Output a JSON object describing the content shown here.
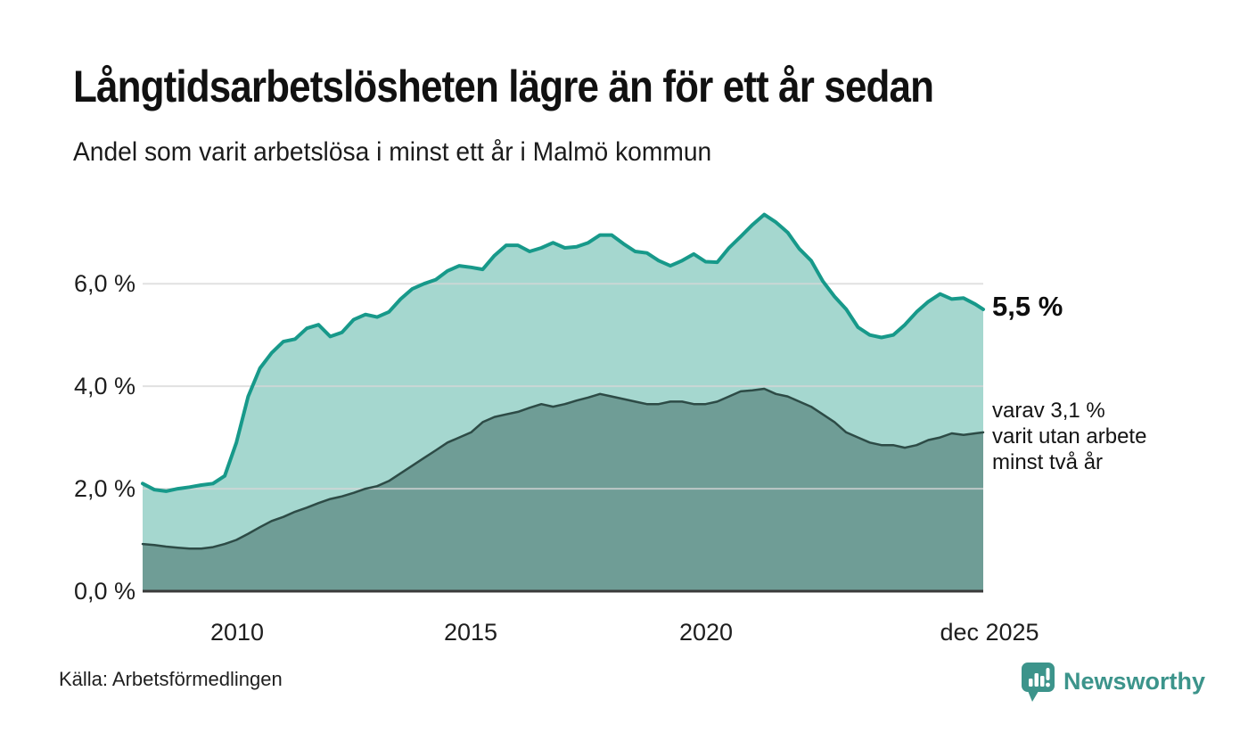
{
  "header": {
    "title": "Långtidsarbetslösheten lägre än för ett år sedan",
    "subtitle": "Andel som varit arbetslösa i minst ett år i Malmö kommun"
  },
  "annotations": {
    "primary_value": "5,5 %",
    "secondary": "varav 3,1 %\nvarit utan arbete\nminst två år"
  },
  "footer": {
    "source": "Källa: Arbetsförmedlingen",
    "brand": "Newsworthy"
  },
  "colors": {
    "accent_teal": "#17998a",
    "light_fill": "#a5d7cf",
    "dark_fill": "#6f9d96",
    "dark_line": "#2d4b46",
    "grid": "#d7d7d7",
    "baseline": "#3a3a3a",
    "brand_teal": "#3c948b"
  },
  "chart_data": {
    "type": "area",
    "title": "Långtidsarbetslösheten lägre än för ett år sedan",
    "subtitle": "Andel som varit arbetslösa i minst ett år i Malmö kommun",
    "source": "Källa: Arbetsförmedlingen",
    "unit": "percent",
    "grid": true,
    "legend": "inline-annotations",
    "xlim": [
      2008,
      2025.92
    ],
    "ylim": [
      0,
      7.5
    ],
    "x": [
      2008,
      2008.25,
      2008.5,
      2008.75,
      2009,
      2009.25,
      2009.5,
      2009.75,
      2010,
      2010.25,
      2010.5,
      2010.75,
      2011,
      2011.25,
      2011.5,
      2011.75,
      2012,
      2012.25,
      2012.5,
      2012.75,
      2013,
      2013.25,
      2013.5,
      2013.75,
      2014,
      2014.25,
      2014.5,
      2014.75,
      2015,
      2015.25,
      2015.5,
      2015.75,
      2016,
      2016.25,
      2016.5,
      2016.75,
      2017,
      2017.25,
      2017.5,
      2017.75,
      2018,
      2018.25,
      2018.5,
      2018.75,
      2019,
      2019.25,
      2019.5,
      2019.75,
      2020,
      2020.25,
      2020.5,
      2020.75,
      2021,
      2021.25,
      2021.5,
      2021.75,
      2022,
      2022.25,
      2022.5,
      2022.75,
      2023,
      2023.25,
      2023.5,
      2023.75,
      2024,
      2024.25,
      2024.5,
      2024.75,
      2025,
      2025.25,
      2025.5,
      2025.75,
      2025.92
    ],
    "series": [
      {
        "name": "Andel arbetslösa minst ett år",
        "latest_value": 5.5,
        "latest_label": "5,5 %",
        "line_color": "#17998a",
        "fill_color": "#a5d7cf",
        "line_width": 4,
        "values": [
          2.1,
          1.98,
          1.95,
          2.0,
          2.03,
          2.07,
          2.1,
          2.25,
          2.9,
          3.8,
          4.35,
          4.65,
          4.87,
          4.92,
          5.13,
          5.2,
          4.97,
          5.05,
          5.3,
          5.4,
          5.35,
          5.45,
          5.7,
          5.9,
          6.0,
          6.08,
          6.25,
          6.35,
          6.32,
          6.28,
          6.55,
          6.75,
          6.75,
          6.63,
          6.7,
          6.8,
          6.7,
          6.72,
          6.8,
          6.95,
          6.95,
          6.78,
          6.63,
          6.6,
          6.45,
          6.35,
          6.45,
          6.58,
          6.43,
          6.42,
          6.7,
          6.92,
          7.15,
          7.35,
          7.2,
          7.0,
          6.68,
          6.45,
          6.05,
          5.75,
          5.5,
          5.15,
          5.0,
          4.95,
          5.0,
          5.2,
          5.45,
          5.65,
          5.8,
          5.7,
          5.72,
          5.6,
          5.5
        ]
      },
      {
        "name": "Andel utan arbete minst två år",
        "latest_value": 3.1,
        "latest_label": "varav 3,1 % varit utan arbete minst två år",
        "line_color": "#2d4b46",
        "fill_color": "#6f9d96",
        "line_width": 2.5,
        "values": [
          0.92,
          0.9,
          0.87,
          0.85,
          0.83,
          0.83,
          0.86,
          0.92,
          1.0,
          1.12,
          1.25,
          1.37,
          1.45,
          1.55,
          1.63,
          1.72,
          1.8,
          1.85,
          1.92,
          2.0,
          2.05,
          2.15,
          2.3,
          2.45,
          2.6,
          2.75,
          2.9,
          3.0,
          3.1,
          3.3,
          3.4,
          3.45,
          3.5,
          3.58,
          3.65,
          3.6,
          3.65,
          3.72,
          3.78,
          3.85,
          3.8,
          3.75,
          3.7,
          3.65,
          3.65,
          3.7,
          3.7,
          3.65,
          3.65,
          3.7,
          3.8,
          3.9,
          3.92,
          3.95,
          3.85,
          3.8,
          3.7,
          3.6,
          3.45,
          3.3,
          3.1,
          3.0,
          2.9,
          2.85,
          2.85,
          2.8,
          2.85,
          2.95,
          3.0,
          3.08,
          3.05,
          3.08,
          3.1
        ]
      }
    ],
    "yticks": [
      {
        "value": 0,
        "label": "0,0 %"
      },
      {
        "value": 2,
        "label": "2,0 %"
      },
      {
        "value": 4,
        "label": "4,0 %"
      },
      {
        "value": 6,
        "label": "6,0 %"
      }
    ],
    "xticks": [
      {
        "value": 2010,
        "label": "2010"
      },
      {
        "value": 2015,
        "label": "2015"
      },
      {
        "value": 2020,
        "label": "2020"
      },
      {
        "value": 2025.92,
        "label": "dec 2025"
      }
    ]
  }
}
